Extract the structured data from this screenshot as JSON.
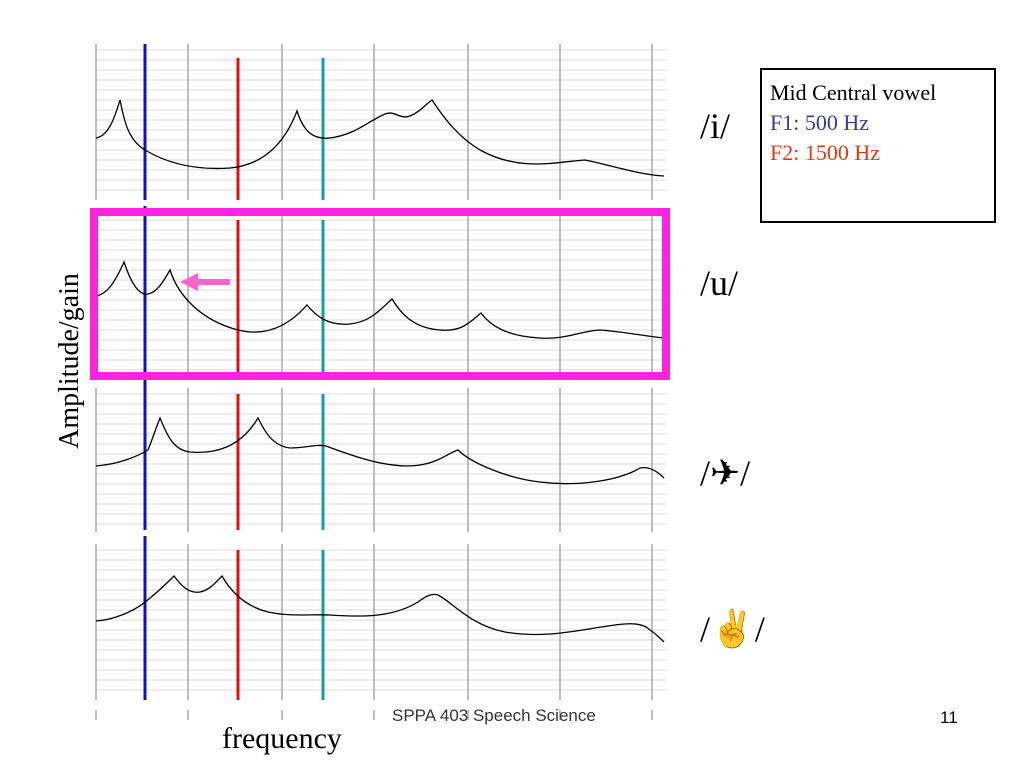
{
  "slide": {
    "ylabel": "Amplitude/gain",
    "xlabel": "frequency",
    "footer": "SPPA 403 Speech Science",
    "page_number": "11"
  },
  "infobox": {
    "title": "Mid Central vowel",
    "f1": "F1: 500 Hz",
    "f2": "F2: 1500 Hz",
    "f1_color": "#3a3a9e",
    "f2_color": "#e03a10"
  },
  "vowels": [
    {
      "label": "/i/"
    },
    {
      "label": "/u/"
    },
    {
      "label": "/✈/"
    },
    {
      "label": "/✌/"
    }
  ],
  "colors": {
    "f1_line": "#1010c8",
    "f2_line": "#e01010",
    "f3_line": "#10a0a0",
    "highlight": "#ff22e0",
    "arrow": "#ff66c8"
  },
  "highlighted_panel": "/u/",
  "arrow_icon": "left-arrow-icon"
}
